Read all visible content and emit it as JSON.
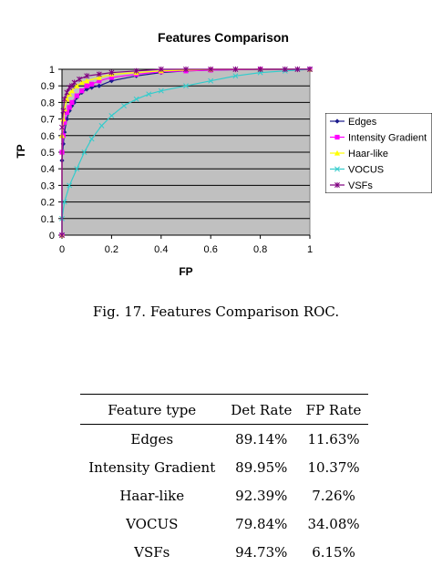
{
  "chart_data": {
    "type": "line",
    "title": "Features Comparison",
    "xlabel": "FP",
    "ylabel": "TP",
    "xlim": [
      0,
      1
    ],
    "ylim": [
      0,
      1
    ],
    "x_ticks": [
      "0",
      "0.2",
      "0.4",
      "0.6",
      "0.8",
      "1"
    ],
    "y_ticks": [
      "0",
      "0.1",
      "0.2",
      "0.3",
      "0.4",
      "0.5",
      "0.6",
      "0.7",
      "0.8",
      "0.9",
      "1"
    ],
    "grid": true,
    "legend_position": "right",
    "series": [
      {
        "name": "Edges",
        "color": "#1a1a8c",
        "marker": "diamond",
        "points": [
          [
            0,
            0
          ],
          [
            0,
            0.45
          ],
          [
            0.005,
            0.55
          ],
          [
            0.01,
            0.62
          ],
          [
            0.02,
            0.7
          ],
          [
            0.03,
            0.75
          ],
          [
            0.04,
            0.78
          ],
          [
            0.05,
            0.8
          ],
          [
            0.06,
            0.83
          ],
          [
            0.08,
            0.86
          ],
          [
            0.1,
            0.88
          ],
          [
            0.12,
            0.89
          ],
          [
            0.15,
            0.9
          ],
          [
            0.2,
            0.93
          ],
          [
            0.3,
            0.96
          ],
          [
            0.4,
            0.98
          ],
          [
            0.5,
            0.99
          ],
          [
            0.6,
            0.995
          ],
          [
            0.8,
            1
          ],
          [
            1,
            1
          ]
        ]
      },
      {
        "name": "Intensity Gradient",
        "color": "#ff00ff",
        "marker": "square",
        "points": [
          [
            0,
            0
          ],
          [
            0,
            0.5
          ],
          [
            0.005,
            0.6
          ],
          [
            0.01,
            0.68
          ],
          [
            0.02,
            0.74
          ],
          [
            0.03,
            0.77
          ],
          [
            0.04,
            0.8
          ],
          [
            0.06,
            0.84
          ],
          [
            0.08,
            0.87
          ],
          [
            0.1,
            0.9
          ],
          [
            0.12,
            0.91
          ],
          [
            0.15,
            0.93
          ],
          [
            0.2,
            0.95
          ],
          [
            0.3,
            0.97
          ],
          [
            0.4,
            0.985
          ],
          [
            0.5,
            0.99
          ],
          [
            0.6,
            0.995
          ],
          [
            0.8,
            1
          ],
          [
            1,
            1
          ]
        ]
      },
      {
        "name": "Haar-like",
        "color": "#ffff00",
        "marker": "triangle",
        "points": [
          [
            0,
            0
          ],
          [
            0,
            0.6
          ],
          [
            0.005,
            0.7
          ],
          [
            0.01,
            0.76
          ],
          [
            0.02,
            0.82
          ],
          [
            0.03,
            0.85
          ],
          [
            0.04,
            0.87
          ],
          [
            0.06,
            0.9
          ],
          [
            0.08,
            0.92
          ],
          [
            0.1,
            0.93
          ],
          [
            0.15,
            0.95
          ],
          [
            0.2,
            0.97
          ],
          [
            0.3,
            0.98
          ],
          [
            0.4,
            0.99
          ],
          [
            0.6,
            1
          ],
          [
            0.8,
            1
          ],
          [
            1,
            1
          ]
        ]
      },
      {
        "name": "VOCUS",
        "color": "#33cccc",
        "marker": "x",
        "points": [
          [
            0,
            0
          ],
          [
            0,
            0.1
          ],
          [
            0.01,
            0.2
          ],
          [
            0.03,
            0.3
          ],
          [
            0.06,
            0.4
          ],
          [
            0.09,
            0.5
          ],
          [
            0.12,
            0.58
          ],
          [
            0.16,
            0.66
          ],
          [
            0.2,
            0.72
          ],
          [
            0.25,
            0.78
          ],
          [
            0.3,
            0.82
          ],
          [
            0.35,
            0.85
          ],
          [
            0.4,
            0.87
          ],
          [
            0.5,
            0.9
          ],
          [
            0.6,
            0.93
          ],
          [
            0.7,
            0.96
          ],
          [
            0.8,
            0.98
          ],
          [
            0.9,
            0.99
          ],
          [
            1,
            1
          ]
        ]
      },
      {
        "name": "VSFs",
        "color": "#800080",
        "marker": "star",
        "points": [
          [
            0,
            0
          ],
          [
            0,
            0.65
          ],
          [
            0.005,
            0.75
          ],
          [
            0.01,
            0.82
          ],
          [
            0.02,
            0.86
          ],
          [
            0.03,
            0.89
          ],
          [
            0.04,
            0.9
          ],
          [
            0.05,
            0.92
          ],
          [
            0.07,
            0.94
          ],
          [
            0.1,
            0.96
          ],
          [
            0.15,
            0.97
          ],
          [
            0.2,
            0.98
          ],
          [
            0.3,
            0.99
          ],
          [
            0.4,
            1
          ],
          [
            0.5,
            1
          ],
          [
            0.6,
            1
          ],
          [
            0.7,
            1
          ],
          [
            0.8,
            1
          ],
          [
            0.9,
            1
          ],
          [
            0.95,
            1
          ],
          [
            1,
            1
          ]
        ]
      }
    ]
  },
  "caption": "Fig. 17. Features Comparison ROC.",
  "table": {
    "headers": [
      "Feature type",
      "Det Rate",
      "FP Rate"
    ],
    "rows": [
      [
        "Edges",
        "89.14%",
        "11.63%"
      ],
      [
        "Intensity Gradient",
        "89.95%",
        "10.37%"
      ],
      [
        "Haar-like",
        "92.39%",
        "7.26%"
      ],
      [
        "VOCUS",
        "79.84%",
        "34.08%"
      ],
      [
        "VSFs",
        "94.73%",
        "6.15%"
      ]
    ]
  }
}
